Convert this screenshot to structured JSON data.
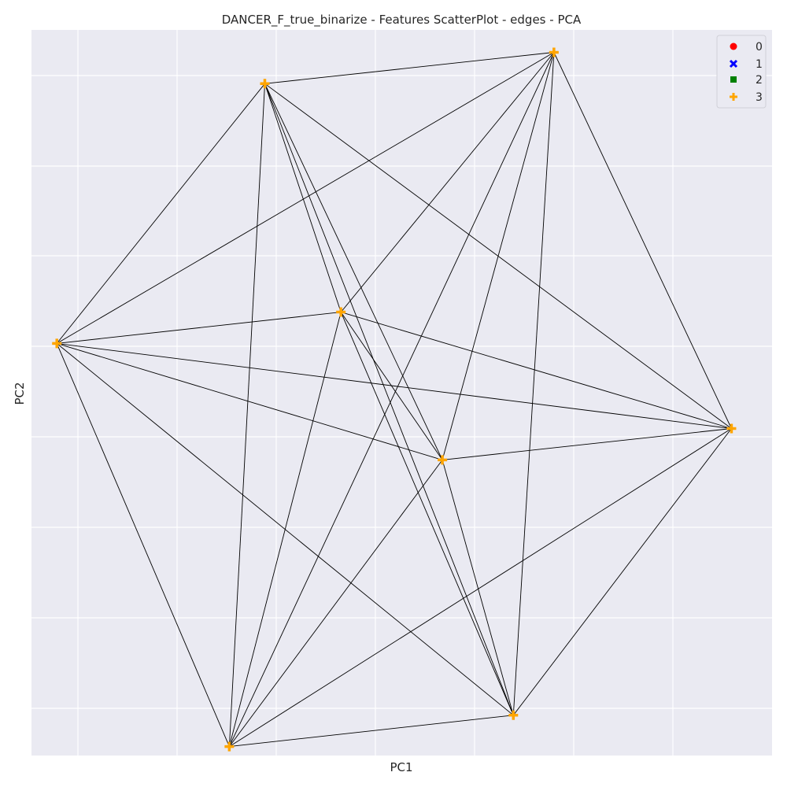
{
  "chart_data": {
    "type": "scatter",
    "title": "DANCER_F_true_binarize - Features ScatterPlot - edges - PCA",
    "xlabel": "PC1",
    "ylabel": "PC2",
    "grid": true,
    "x_ticks_labeled": false,
    "y_ticks_labeled": false,
    "xlim": [
      -0.72,
      0.74
    ],
    "ylim": [
      -0.79,
      0.83
    ],
    "legend": {
      "placement": "top-right",
      "entries": [
        {
          "label": "0",
          "color": "#ff0000",
          "marker": "circle"
        },
        {
          "label": "1",
          "color": "#0000ff",
          "marker": "x"
        },
        {
          "label": "2",
          "color": "#008000",
          "marker": "square"
        },
        {
          "label": "3",
          "color": "#ffa500",
          "marker": "plus"
        }
      ]
    },
    "series": [
      {
        "name": "3",
        "color": "#ffa500",
        "marker": "plus",
        "points": [
          {
            "id": "a",
            "x": -0.26,
            "y": 0.71
          },
          {
            "id": "b",
            "x": 0.31,
            "y": 0.78
          },
          {
            "id": "c",
            "x": -0.67,
            "y": 0.13
          },
          {
            "id": "d",
            "x": -0.11,
            "y": 0.2
          },
          {
            "id": "e",
            "x": 0.66,
            "y": -0.06
          },
          {
            "id": "f",
            "x": 0.09,
            "y": -0.13
          },
          {
            "id": "g",
            "x": 0.23,
            "y": -0.7
          },
          {
            "id": "h",
            "x": -0.33,
            "y": -0.77
          }
        ]
      }
    ],
    "edges": [
      [
        "a",
        "b"
      ],
      [
        "a",
        "c"
      ],
      [
        "a",
        "d"
      ],
      [
        "a",
        "e"
      ],
      [
        "a",
        "f"
      ],
      [
        "a",
        "g"
      ],
      [
        "a",
        "h"
      ],
      [
        "b",
        "c"
      ],
      [
        "b",
        "d"
      ],
      [
        "b",
        "e"
      ],
      [
        "b",
        "f"
      ],
      [
        "b",
        "g"
      ],
      [
        "b",
        "h"
      ],
      [
        "c",
        "d"
      ],
      [
        "c",
        "e"
      ],
      [
        "c",
        "f"
      ],
      [
        "c",
        "g"
      ],
      [
        "c",
        "h"
      ],
      [
        "d",
        "e"
      ],
      [
        "d",
        "f"
      ],
      [
        "d",
        "g"
      ],
      [
        "d",
        "h"
      ],
      [
        "e",
        "f"
      ],
      [
        "e",
        "g"
      ],
      [
        "e",
        "h"
      ],
      [
        "f",
        "g"
      ],
      [
        "f",
        "h"
      ],
      [
        "g",
        "h"
      ]
    ],
    "colors": {
      "plot_background": "#eaeaf2",
      "grid": "#ffffff",
      "edge": "#000000"
    }
  }
}
